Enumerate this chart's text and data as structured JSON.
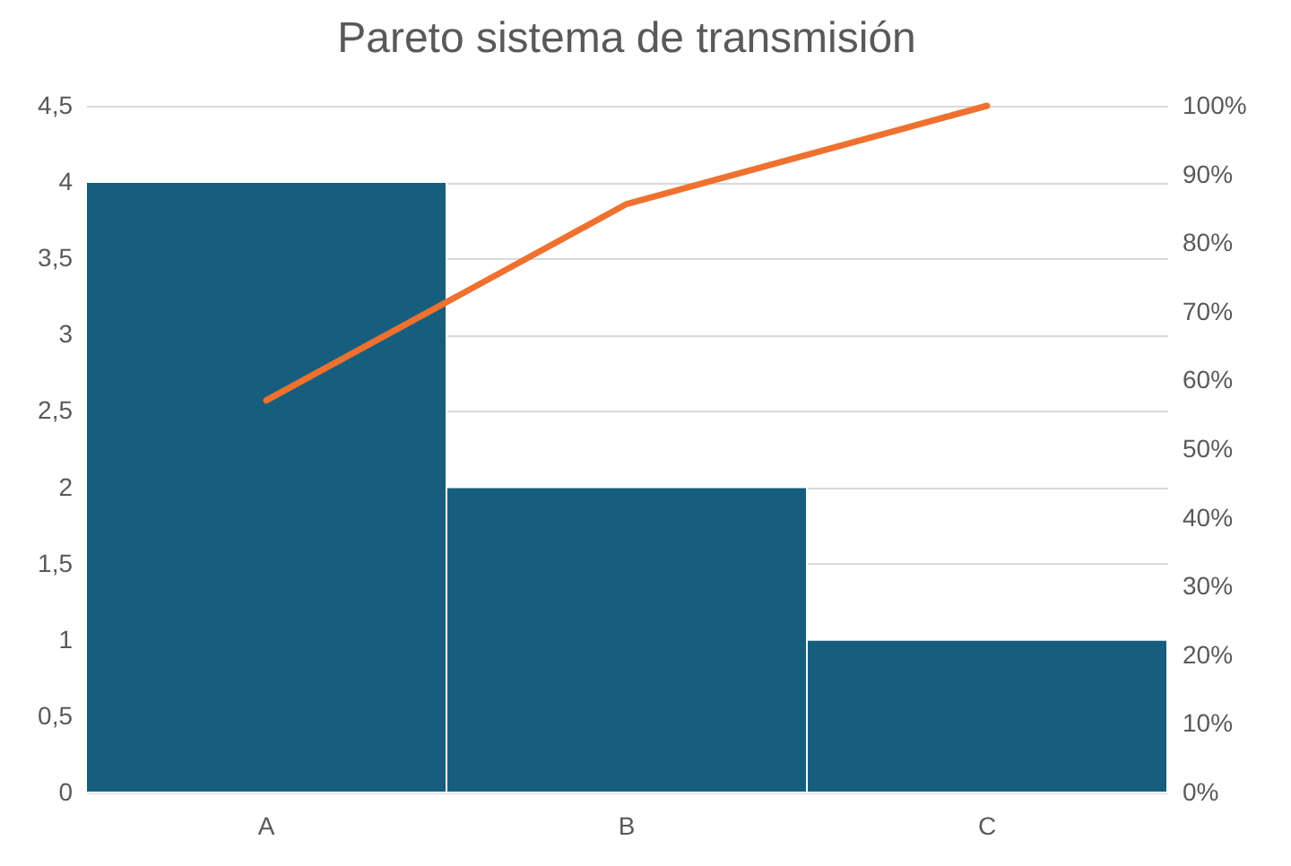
{
  "chart_data": {
    "type": "bar",
    "title": "Pareto sistema de transmisión",
    "categories": [
      "A",
      "B",
      "C"
    ],
    "series": [
      {
        "color": "#175e7e",
        "values": [
          4,
          2,
          1
        ]
      },
      {
        "type": "line",
        "axis": "y2",
        "color": "#ee7130",
        "values": [
          57.1,
          85.7,
          100
        ]
      }
    ],
    "ylim": [
      0,
      4.5
    ],
    "yticks": [
      0,
      {
        "value": 0.5,
        "label": "0,5"
      },
      1,
      {
        "value": 1.5,
        "label": "1,5"
      },
      2,
      {
        "value": 2.5,
        "label": "2,5"
      },
      3,
      {
        "value": 3.5,
        "label": "3,5"
      },
      4,
      {
        "value": 4.5,
        "label": "4,5"
      }
    ],
    "y2lim": [
      0,
      100
    ],
    "y2ticks": [
      {
        "value": 0,
        "label": "0%"
      },
      {
        "value": 10,
        "label": "10%"
      },
      {
        "value": 20,
        "label": "20%"
      },
      {
        "value": 30,
        "label": "30%"
      },
      {
        "value": 40,
        "label": "40%"
      },
      {
        "value": 50,
        "label": "50%"
      },
      {
        "value": 60,
        "label": "60%"
      },
      {
        "value": 70,
        "label": "70%"
      },
      {
        "value": 80,
        "label": "80%"
      },
      {
        "value": 90,
        "label": "90%"
      },
      {
        "value": 100,
        "label": "100%"
      }
    ],
    "grid": "y",
    "marker": "none",
    "line_style": "solid"
  }
}
